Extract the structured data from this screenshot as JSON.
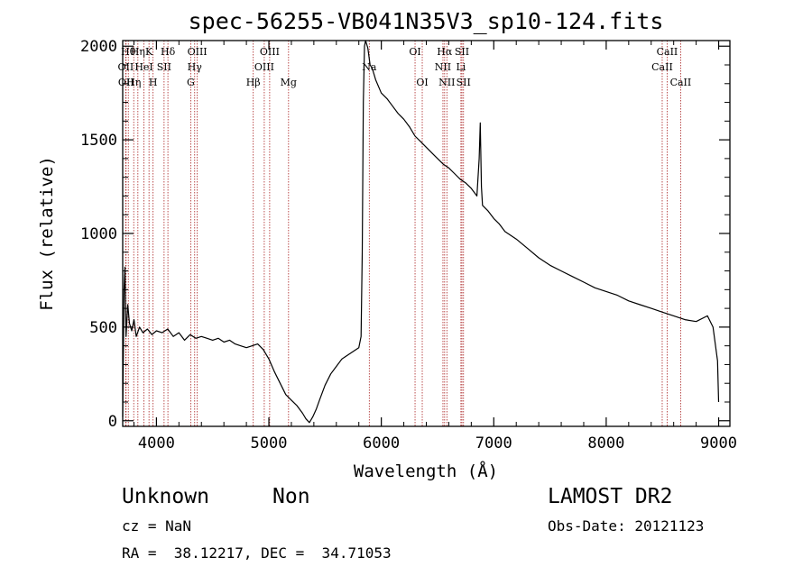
{
  "chart_data": {
    "type": "line",
    "title": "spec-56255-VB041N35V3_sp10-124.fits",
    "xlabel": "Wavelength (Å)",
    "ylabel": "Flux (relative)",
    "xlim": [
      3700,
      9100
    ],
    "ylim": [
      -30,
      2030
    ],
    "xticks": [
      4000,
      5000,
      6000,
      7000,
      8000,
      9000
    ],
    "xtick_labels": [
      "4000",
      "5000",
      "6000",
      "7000",
      "8000",
      "9000"
    ],
    "yticks": [
      0,
      500,
      1000,
      1500,
      2000
    ],
    "ytick_labels": [
      "0",
      "500",
      "1000",
      "1500",
      "2000"
    ],
    "grid": false,
    "line_color": "#000000",
    "marker_color": "#aa2222",
    "series": [
      {
        "x": [
          3700,
          3705,
          3712,
          3720,
          3730,
          3745,
          3760,
          3780,
          3800,
          3820,
          3850,
          3880,
          3920,
          3960,
          4000,
          4050,
          4100,
          4150,
          4200,
          4250,
          4300,
          4350,
          4400,
          4450,
          4500,
          4550,
          4600,
          4650,
          4700,
          4750,
          4800,
          4850,
          4900,
          4950,
          5000,
          5050,
          5100,
          5150,
          5200,
          5250,
          5300,
          5330,
          5360,
          5390,
          5420,
          5450,
          5500,
          5550,
          5600,
          5650,
          5700,
          5750,
          5800,
          5820,
          5830,
          5840,
          5850,
          5860,
          5880,
          5900,
          5920,
          5950,
          6000,
          6050,
          6100,
          6150,
          6200,
          6250,
          6300,
          6350,
          6400,
          6450,
          6500,
          6550,
          6600,
          6650,
          6700,
          6750,
          6800,
          6850,
          6870,
          6880,
          6890,
          6900,
          6950,
          7000,
          7050,
          7100,
          7200,
          7300,
          7400,
          7500,
          7600,
          7700,
          7800,
          7900,
          8000,
          8100,
          8200,
          8300,
          8400,
          8500,
          8600,
          8700,
          8800,
          8900,
          8950,
          8990,
          9000
        ],
        "y": [
          20,
          300,
          700,
          820,
          450,
          620,
          520,
          480,
          540,
          450,
          500,
          470,
          490,
          460,
          480,
          470,
          490,
          450,
          470,
          430,
          460,
          440,
          450,
          440,
          430,
          440,
          420,
          430,
          410,
          400,
          390,
          400,
          410,
          380,
          330,
          260,
          200,
          140,
          110,
          80,
          40,
          10,
          -10,
          20,
          60,
          110,
          190,
          250,
          290,
          330,
          350,
          370,
          390,
          450,
          900,
          1700,
          2000,
          2100,
          1990,
          1900,
          1880,
          1820,
          1750,
          1720,
          1680,
          1640,
          1610,
          1570,
          1520,
          1490,
          1460,
          1430,
          1400,
          1370,
          1350,
          1320,
          1290,
          1270,
          1240,
          1200,
          1400,
          1590,
          1250,
          1150,
          1120,
          1080,
          1050,
          1010,
          970,
          920,
          870,
          830,
          800,
          770,
          740,
          710,
          690,
          670,
          640,
          620,
          600,
          580,
          560,
          540,
          530,
          560,
          500,
          320,
          100
        ]
      }
    ],
    "line_markers": [
      {
        "x": 3727,
        "label": "OII",
        "row": 1
      },
      {
        "x": 3730,
        "label": "OII",
        "row": 2
      },
      {
        "x": 3750,
        "label": "Hθ",
        "row": 0
      },
      {
        "x": 3798,
        "label": "Hη",
        "row": 2
      },
      {
        "x": 3835,
        "label": "Hη",
        "row": 0
      },
      {
        "x": 3889,
        "label": "HeI",
        "row": 1
      },
      {
        "x": 3934,
        "label": "K",
        "row": 0
      },
      {
        "x": 3970,
        "label": "H",
        "row": 2
      },
      {
        "x": 4068,
        "label": "SII",
        "row": 1
      },
      {
        "x": 4102,
        "label": "Hδ",
        "row": 0
      },
      {
        "x": 4305,
        "label": "G",
        "row": 2
      },
      {
        "x": 4340,
        "label": "Hγ",
        "row": 1
      },
      {
        "x": 4363,
        "label": "OIII",
        "row": 0
      },
      {
        "x": 4861,
        "label": "Hβ",
        "row": 2
      },
      {
        "x": 4959,
        "label": "OIII",
        "row": 1
      },
      {
        "x": 5007,
        "label": "OIII",
        "row": 0
      },
      {
        "x": 5175,
        "label": "Mg",
        "row": 2
      },
      {
        "x": 5893,
        "label": "Na",
        "row": 1
      },
      {
        "x": 6300,
        "label": "OI",
        "row": 0
      },
      {
        "x": 6364,
        "label": "OI",
        "row": 2
      },
      {
        "x": 6548,
        "label": "NII",
        "row": 1
      },
      {
        "x": 6563,
        "label": "Hα",
        "row": 0
      },
      {
        "x": 6583,
        "label": "NII",
        "row": 2
      },
      {
        "x": 6708,
        "label": "Li",
        "row": 1
      },
      {
        "x": 6717,
        "label": "SII",
        "row": 0
      },
      {
        "x": 6731,
        "label": "SII",
        "row": 2
      },
      {
        "x": 8498,
        "label": "CaII",
        "row": 1
      },
      {
        "x": 8542,
        "label": "CaII",
        "row": 0
      },
      {
        "x": 8662,
        "label": "CaII",
        "row": 2
      }
    ]
  },
  "footer": {
    "object_class": "Unknown",
    "object_subclass": "Non",
    "survey": "LAMOST DR2",
    "cz_line": "cz = NaN",
    "obs_date_line": "Obs-Date: 20121123",
    "radec_line": "RA =  38.12217, DEC =  34.71053"
  }
}
